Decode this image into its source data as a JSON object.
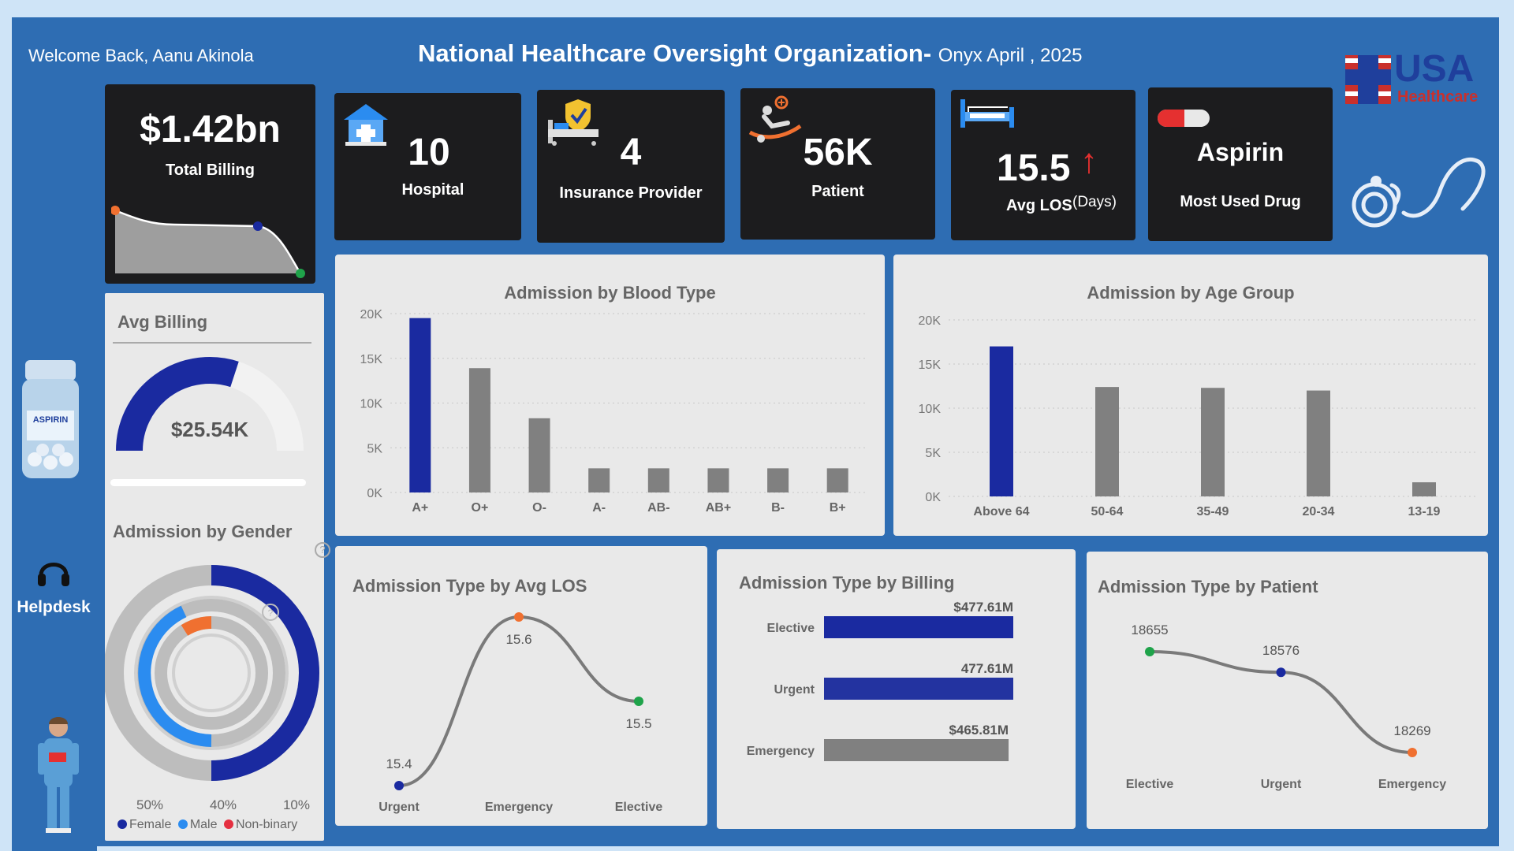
{
  "header": {
    "welcome": "Welcome Back, Aanu Akinola",
    "title": "National Healthcare Oversight Organization-",
    "subtitle": "Onyx April , 2025"
  },
  "logo": {
    "text": "USA",
    "sub": "Healthcare"
  },
  "kpis": {
    "billing": {
      "value": "$1.42bn",
      "label": "Total Billing"
    },
    "hospital": {
      "value": "10",
      "label": "Hospital"
    },
    "insurance": {
      "value": "4",
      "label": "Insurance Provider"
    },
    "patient": {
      "value": "56K",
      "label": "Patient"
    },
    "los": {
      "value": "15.5",
      "label": "Avg LOS",
      "unit": "(Days)",
      "arrow": "↑"
    },
    "drug": {
      "value": "Aspirin",
      "label": "Most Used Drug"
    }
  },
  "avg_billing": {
    "title": "Avg Billing",
    "value": "$25.54K",
    "fraction": 0.6
  },
  "gender": {
    "title": "Admission by Gender",
    "percent_labels": [
      "50%",
      "40%",
      "10%"
    ],
    "legend": [
      "Female",
      "Male",
      "Non-binary"
    ],
    "colors": {
      "female": "#1a2aa0",
      "male": "#2b8cf0",
      "nonbinary": "#f07030"
    }
  },
  "sidebar": {
    "helpdesk": "Helpdesk",
    "bottle_label": "ASPIRIN"
  },
  "colors": {
    "primary": "#1a2aa0",
    "grey": "#808080",
    "green": "#1fa34a",
    "orange": "#f07030"
  },
  "chart_data": [
    {
      "type": "bar",
      "title": "Admission by Blood Type",
      "categories": [
        "A+",
        "O+",
        "O-",
        "A-",
        "AB-",
        "AB+",
        "B-",
        "B+"
      ],
      "values": [
        19500,
        13900,
        8300,
        2700,
        2700,
        2700,
        2700,
        2700
      ],
      "ylim": [
        0,
        20000
      ],
      "yticks": [
        "0K",
        "5K",
        "10K",
        "15K",
        "20K"
      ]
    },
    {
      "type": "bar",
      "title": "Admission by Age Group",
      "categories": [
        "Above 64",
        "50-64",
        "35-49",
        "20-34",
        "13-19"
      ],
      "values": [
        17000,
        12400,
        12300,
        12000,
        1600
      ],
      "ylim": [
        0,
        20000
      ],
      "yticks": [
        "0K",
        "5K",
        "10K",
        "15K",
        "20K"
      ]
    },
    {
      "type": "line",
      "title": "Admission Type by Avg LOS",
      "categories": [
        "Urgent",
        "Emergency",
        "Elective"
      ],
      "values": [
        15.4,
        15.6,
        15.5
      ],
      "labels": [
        "15.4",
        "15.6",
        "15.5"
      ]
    },
    {
      "type": "bar",
      "title": "Admission Type by Billing",
      "categories": [
        "Elective",
        "Urgent",
        "Emergency"
      ],
      "values": [
        477.61,
        477.61,
        465.81
      ],
      "labels": [
        "$477.61M",
        "477.61M",
        "$465.81M"
      ]
    },
    {
      "type": "line",
      "title": "Admission Type by Patient",
      "categories": [
        "Elective",
        "Urgent",
        "Emergency"
      ],
      "values": [
        18655,
        18576,
        18269
      ],
      "labels": [
        "18655",
        "18576",
        "18269"
      ]
    }
  ]
}
